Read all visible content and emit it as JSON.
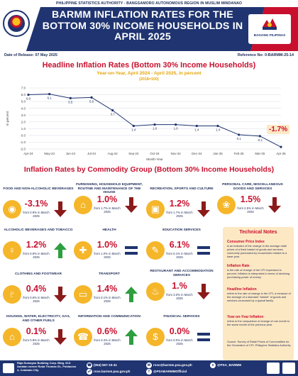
{
  "header": {
    "agency_line": "PHILIPPINE STATISTICS AUTHORITY - BANGSAMORO AUTONOMOUS REGION IN MUSLIM MINDANAO",
    "title_line1": "BARMM INFLATION RATES FOR THE",
    "title_line2": "BOTTOM 30% INCOME HOUSEHOLDS IN",
    "title_line3": "APRIL 2025",
    "right_logo_text": "BAGONG PILIPINAS",
    "release": "Date of Release: 07 May 2025",
    "reference": "Reference No: 0-BARMM-25-14"
  },
  "chart_section": {
    "title": "Headline Inflation Rates (Bottom 30% Income Households)",
    "subtitle": "Year-on-Year, April 2024 - April 2025, in percent",
    "base": "(2018=100)",
    "latest_badge": "-1.7%"
  },
  "chart_data": {
    "type": "line",
    "title": "Headline Inflation Rates (Bottom 30% Income Households)",
    "xlabel": "Month-Year",
    "ylabel": "In percent",
    "ylim": [
      -2.0,
      7.0
    ],
    "yticks": [
      "7.0",
      "6.0",
      "5.0",
      "4.0",
      "3.0",
      "2.0",
      "1.0",
      "0.0",
      "-1.0",
      "-2.0"
    ],
    "categories": [
      "Apr-24",
      "May-24",
      "Jun-24",
      "Jul-24",
      "Aug-24",
      "Sep-24",
      "Oct-24",
      "Nov-24",
      "Dec-24",
      "Jan-25",
      "Feb-25",
      "Mar-25",
      "Apr-25"
    ],
    "values": [
      6.0,
      6.1,
      5.5,
      5.6,
      3.7,
      1.4,
      1.6,
      1.6,
      1.4,
      1.4,
      0.1,
      -0.1,
      -1.7
    ],
    "data_labels": [
      "6.0",
      "6.1",
      "5.5",
      "5.6",
      "3.7",
      "1.4",
      "1.6",
      "1.6",
      "1.4",
      "1.4",
      "0.1",
      "-0.1",
      ""
    ],
    "grid": true,
    "color": "#1f3470"
  },
  "group_section": {
    "title": "Inflation Rates by Commodity Group (Bottom 30% Income Households)"
  },
  "commodities": [
    {
      "name": "FOOD AND NON-ALCOHOLIC BEVERAGES",
      "value": "-3.1%",
      "from": "from 0.9% in March 2025",
      "dir": "down",
      "icon": "food-icon"
    },
    {
      "name": "FURNISHING, HOUSEHOLD EQUIPMENT, ROUTINE AND MAINTENANCE OF THE HOUSE",
      "value": "1.0%",
      "from": "from 1.7% in March 2025",
      "dir": "down",
      "icon": "furniture-icon"
    },
    {
      "name": "RECREATION, SPORTS AND CULTURE",
      "value": "1.2%",
      "from": "from 1.7% in March 2025",
      "dir": "down",
      "icon": "gamepad-icon"
    },
    {
      "name": "PERSONAL CARE, MISCELLANEOUS GOODS AND SERVICES",
      "value": "1.5%",
      "from": "from 2.5% in March 2025",
      "dir": "down",
      "icon": "personal-care-icon"
    },
    {
      "name": "ALCOHOLIC BEVERAGES AND TOBACCO",
      "value": "1.2%",
      "from": "from 0.9% in March 2025",
      "dir": "up",
      "icon": "wine-glass-icon"
    },
    {
      "name": "HEALTH",
      "value": "1.0%",
      "from": "from 1.0% in March 2025",
      "dir": "equal",
      "icon": "first-aid-icon"
    },
    {
      "name": "EDUCATION SERVICES",
      "value": "6.1%",
      "from": "from 6.1% in March 2025",
      "dir": "equal",
      "icon": "education-icon"
    },
    {
      "name": "CLOTHING AND FOOTWEAR",
      "value": "0.4%",
      "from": "from 0.6% in March 2025",
      "dir": "down",
      "icon": "shirt-icon"
    },
    {
      "name": "TRANSPORT",
      "value": "1.4%",
      "from": "from 0.1% in March 2025",
      "dir": "up",
      "icon": "car-icon"
    },
    {
      "name": "RESTAURANT AND ACCOMMODATION SERVICES",
      "value": "1.%",
      "from": "from 3.0% in March 2025",
      "dir": "down",
      "icon": "restaurant-icon"
    },
    {
      "name": "HOUSING, WATER, ELECTRICITY, GAS, AND OTHER FUELS",
      "value": "0.1%",
      "from": "from 0.9% in March 2025",
      "dir": "down",
      "icon": "house-icon"
    },
    {
      "name": "INFORMATION AND COMMUNICATION",
      "value": "0.6%",
      "from": "from 0.4% in March 2025",
      "dir": "up",
      "icon": "phone-icon"
    },
    {
      "name": "FINANCIAL SERVICES",
      "value": "0.0%",
      "from": "from 0.0% in March 2025",
      "dir": "equal",
      "icon": "finance-icon"
    }
  ],
  "notes": {
    "title": "Technical Notes",
    "items": [
      {
        "heading": "Consumer Price Index",
        "text": "is an indicator of the change in the average retail prices of a fixed basket of goods and services commonly purchased by households relative to a base year."
      },
      {
        "heading": "Inflation Rate",
        "text": "is the rate of change of the CPI expressed in percent. Inflation is interpreted in terms of declining purchasing power of money."
      },
      {
        "heading": "Headline Inflation",
        "text": "refers to the rate of change in the CPI, a measure of the average of a standard \"basket\" of goods and services consumed by a typical family."
      },
      {
        "heading": "Year-on-Year Inflation",
        "text": "refers to the comparison of change of one month to the same month of the previous year."
      },
      {
        "heading": "",
        "text": "Source: Survey of Retail Prices of Commodities for the Generation of CPI, Philippine Statistics Authority"
      }
    ]
  },
  "footer": {
    "address": "Raja Sumayan Building Corp. Bldg. M.D Amatan corner Roda Thomas St., Poblacion 4, Cotabato City",
    "phone": "(064) 557-15-41",
    "email": "rsso@barmm.psa.gov.ph",
    "web": "rsso.barmm.psa.gov.ph",
    "social": "@PSABARMMOfficial",
    "handle": "@PSA_BARMM"
  }
}
